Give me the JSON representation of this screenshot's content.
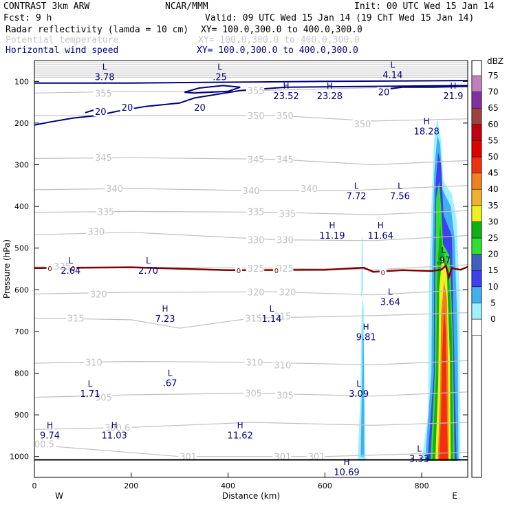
{
  "header": {
    "line1_left": "CONTRAST  3km ARW",
    "line1_center": "NCAR/MMM",
    "line1_right": "Init: 00 UTC Wed 15 Jan 14",
    "line2_left": "Fcst:     9 h",
    "line2_right": "Valid: 09 UTC Wed 15 Jan 14 (19 ChT Wed 15 Jan 14)",
    "field1_name": "Radar reflectivity (lamda = 10 cm)",
    "field1_xy": "XY= 100.0,300.0 to 400.0,300.0",
    "field2_name": "Potential temperature",
    "field2_xy": "XY= 100.0,300.0 to 400.0,300.0",
    "field3_name": "Horizontal wind speed",
    "field3_xy": "XY= 100.0,300.0 to 400.0,300.0"
  },
  "colors": {
    "theta": "#c0c0c0",
    "wind": "#000080",
    "freezing_line": "#800000",
    "text": "#000000"
  },
  "chart_data": {
    "type": "contour cross-section",
    "xlabel": "Distance (km)",
    "ylabel": "Pressure (hPa)",
    "xlim": [
      0,
      895
    ],
    "ylim": [
      1050,
      50
    ],
    "x_ticks": [
      0,
      200,
      400,
      600,
      800
    ],
    "y_ticks": [
      100,
      200,
      300,
      400,
      500,
      600,
      700,
      800,
      900,
      1000
    ],
    "west_label": "W",
    "east_label": "E",
    "colorbar": {
      "unit": "dBZ",
      "levels": [
        0,
        5,
        10,
        15,
        20,
        25,
        30,
        35,
        40,
        45,
        50,
        55,
        60,
        65,
        70,
        75
      ],
      "colors": [
        "#ffffff",
        "#a0f0ff",
        "#40b0f0",
        "#4040f0",
        "#4060c0",
        "#30e030",
        "#10b010",
        "#f0f020",
        "#f0b030",
        "#f08020",
        "#f03010",
        "#e00000",
        "#c00010",
        "#a04040",
        "#8030a0",
        "#c080c0"
      ]
    },
    "theta_labels": [
      {
        "text": "355",
        "x": 125,
        "p": 128
      },
      {
        "text": "355",
        "x": 440,
        "p": 122
      },
      {
        "text": "350",
        "x": 440,
        "p": 182
      },
      {
        "text": "350",
        "x": 500,
        "p": 182
      },
      {
        "text": "350",
        "x": 660,
        "p": 202
      },
      {
        "text": "345",
        "x": 125,
        "p": 283
      },
      {
        "text": "345",
        "x": 440,
        "p": 287
      },
      {
        "text": "345",
        "x": 500,
        "p": 287
      },
      {
        "text": "340",
        "x": 148,
        "p": 357
      },
      {
        "text": "340",
        "x": 430,
        "p": 362
      },
      {
        "text": "340",
        "x": 550,
        "p": 357
      },
      {
        "text": "335",
        "x": 130,
        "p": 412
      },
      {
        "text": "335",
        "x": 440,
        "p": 412
      },
      {
        "text": "335",
        "x": 505,
        "p": 417
      },
      {
        "text": "330",
        "x": 110,
        "p": 460
      },
      {
        "text": "330",
        "x": 440,
        "p": 480
      },
      {
        "text": "330",
        "x": 500,
        "p": 480
      },
      {
        "text": "325",
        "x": 40,
        "p": 543
      },
      {
        "text": "325",
        "x": 440,
        "p": 548
      },
      {
        "text": "325",
        "x": 500,
        "p": 548
      },
      {
        "text": "320",
        "x": 115,
        "p": 610
      },
      {
        "text": "320",
        "x": 440,
        "p": 605
      },
      {
        "text": "320",
        "x": 505,
        "p": 605
      },
      {
        "text": "315",
        "x": 68,
        "p": 668
      },
      {
        "text": "315",
        "x": 435,
        "p": 668
      },
      {
        "text": "315",
        "x": 495,
        "p": 663
      },
      {
        "text": "310",
        "x": 105,
        "p": 774
      },
      {
        "text": "310",
        "x": 437,
        "p": 774
      },
      {
        "text": "310",
        "x": 495,
        "p": 780
      },
      {
        "text": "305",
        "x": 125,
        "p": 858
      },
      {
        "text": "305",
        "x": 435,
        "p": 848
      },
      {
        "text": "305",
        "x": 500,
        "p": 853
      },
      {
        "text": "300.6",
        "x": 145,
        "p": 930
      },
      {
        "text": "00.5",
        "x": 0,
        "p": 970
      },
      {
        "text": "301",
        "x": 300,
        "p": 1000
      },
      {
        "text": "301",
        "x": 495,
        "p": 1000
      },
      {
        "text": "301",
        "x": 565,
        "p": 1000
      }
    ],
    "wind_labels": [
      {
        "text": "20",
        "x": 125,
        "p": 172
      },
      {
        "text": "20",
        "x": 180,
        "p": 162
      },
      {
        "text": "20",
        "x": 330,
        "p": 162
      },
      {
        "text": "20",
        "x": 710,
        "p": 125
      }
    ],
    "freezing_labels": [
      {
        "text": "0",
        "x": 32,
        "p": 548
      },
      {
        "text": "0",
        "x": 80,
        "p": 548
      },
      {
        "text": "0",
        "x": 422,
        "p": 553
      },
      {
        "text": "0",
        "x": 500,
        "p": 553
      },
      {
        "text": "0",
        "x": 720,
        "p": 558
      }
    ],
    "extrema": [
      {
        "type": "L",
        "value": "3.78",
        "x": 145,
        "p": 72
      },
      {
        "type": "L",
        "value": ".25",
        "x": 383,
        "p": 72
      },
      {
        "type": "L",
        "value": "4.14",
        "x": 740,
        "p": 67
      },
      {
        "type": "H",
        "value": "23.52",
        "x": 520,
        "p": 118
      },
      {
        "type": "H",
        "value": "23.28",
        "x": 610,
        "p": 118
      },
      {
        "type": "H",
        "value": "21.9",
        "x": 865,
        "p": 118
      },
      {
        "type": "H",
        "value": "18.28",
        "x": 810,
        "p": 203
      },
      {
        "type": "L",
        "value": "7.72",
        "x": 665,
        "p": 358
      },
      {
        "type": "L",
        "value": "7.56",
        "x": 755,
        "p": 358
      },
      {
        "type": "H",
        "value": "11.19",
        "x": 615,
        "p": 453
      },
      {
        "type": "H",
        "value": "11.64",
        "x": 715,
        "p": 453
      },
      {
        "type": "L",
        "value": ".97",
        "x": 845,
        "p": 512
      },
      {
        "type": "L",
        "value": "2.64",
        "x": 75,
        "p": 537
      },
      {
        "type": "L",
        "value": "2.70",
        "x": 235,
        "p": 537
      },
      {
        "type": "L",
        "value": "3.64",
        "x": 735,
        "p": 612
      },
      {
        "type": "H",
        "value": "7.23",
        "x": 270,
        "p": 652
      },
      {
        "type": "L",
        "value": "1.14",
        "x": 490,
        "p": 652
      },
      {
        "type": "H",
        "value": "9.81",
        "x": 685,
        "p": 696
      },
      {
        "type": "L",
        "value": ".67",
        "x": 280,
        "p": 807
      },
      {
        "type": "L",
        "value": "1.71",
        "x": 115,
        "p": 832
      },
      {
        "type": "L",
        "value": "3.09",
        "x": 670,
        "p": 832
      },
      {
        "type": "H",
        "value": "9.74",
        "x": 32,
        "p": 932
      },
      {
        "type": "H",
        "value": "11.03",
        "x": 165,
        "p": 932
      },
      {
        "type": "H",
        "value": "11.62",
        "x": 425,
        "p": 932
      },
      {
        "type": "L",
        "value": "3.33",
        "x": 795,
        "p": 988
      },
      {
        "type": "H",
        "value": "10.69",
        "x": 645,
        "p": 1020
      }
    ]
  }
}
